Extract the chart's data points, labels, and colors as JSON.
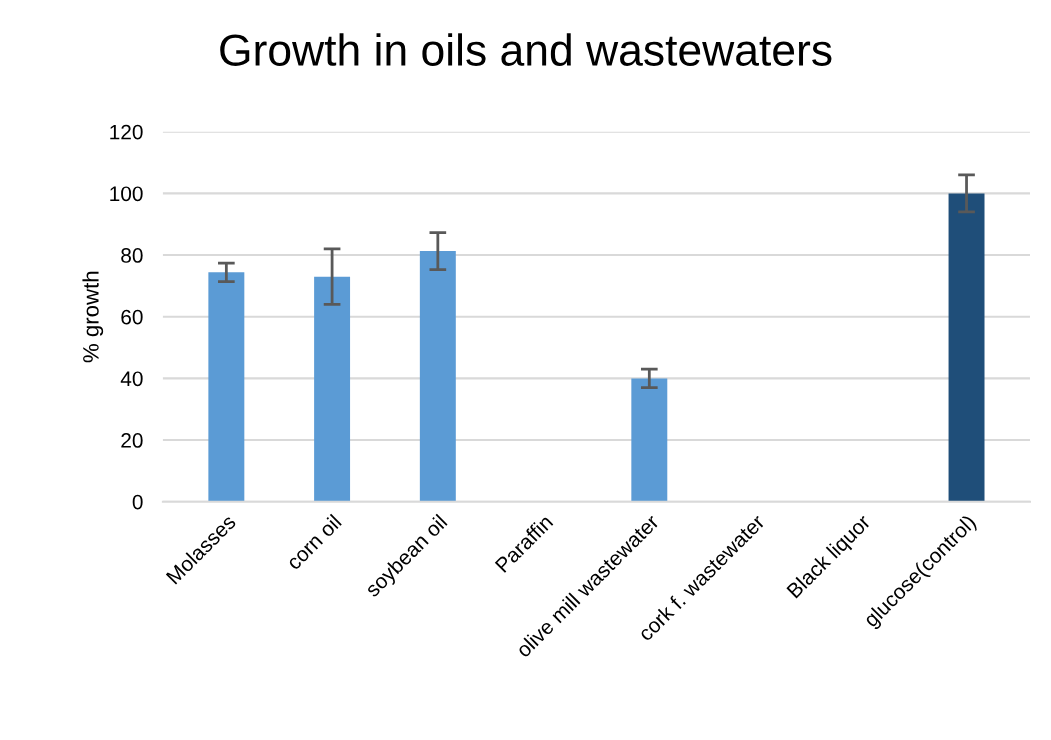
{
  "chart_data": {
    "type": "bar",
    "title": "Growth in oils and wastewaters",
    "ylabel": "% growth",
    "categories": [
      "Molasses",
      "corn oil",
      "soybean oil",
      "Paraffin",
      "olive mill wastewater",
      "cork f. wastewater",
      "Black liquor",
      "glucose(control)"
    ],
    "values": [
      74.4,
      73,
      81.3,
      null,
      40,
      null,
      0,
      100
    ],
    "errors": [
      3,
      9,
      6,
      null,
      3,
      null,
      null,
      6
    ],
    "colors": [
      "#5b9bd5",
      "#5b9bd5",
      "#5b9bd5",
      "#5b9bd5",
      "#5b9bd5",
      "#5b9bd5",
      "#5b9bd5",
      "#1f4e79"
    ],
    "ylim": [
      0,
      120
    ],
    "yticks": [
      0,
      20,
      40,
      60,
      80,
      100,
      120
    ],
    "grid": "y"
  }
}
